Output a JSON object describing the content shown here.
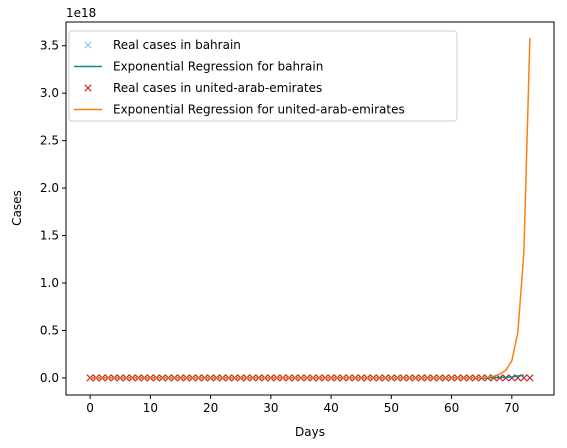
{
  "chart_data": {
    "type": "line",
    "title": "",
    "xlabel": "Days",
    "ylabel": "Cases",
    "y_scale_label": "1e18",
    "xlim": [
      -4,
      77
    ],
    "ylim": [
      -0.18,
      3.75
    ],
    "x_ticks": [
      0,
      10,
      20,
      30,
      40,
      50,
      60,
      70
    ],
    "x_tick_labels": [
      "0",
      "10",
      "20",
      "30",
      "40",
      "50",
      "60",
      "70"
    ],
    "y_ticks": [
      0.0,
      0.5,
      1.0,
      1.5,
      2.0,
      2.5,
      3.0,
      3.5
    ],
    "y_tick_labels": [
      "0.0",
      "0.5",
      "1.0",
      "1.5",
      "2.0",
      "2.5",
      "3.0",
      "3.5"
    ],
    "grid": false,
    "legend_position": "top-left",
    "series": [
      {
        "name": "Real cases in bahrain",
        "kind": "marker",
        "marker": "x",
        "color": "#87ceeb",
        "x_start": 0,
        "x_end": 73,
        "value": 0
      },
      {
        "name": "Exponential Regression for bahrain",
        "kind": "line",
        "color": "#008b8b",
        "x": [
          0,
          66,
          68,
          70,
          71,
          72
        ],
        "y": [
          0,
          0.0,
          0.005,
          0.01,
          0.02,
          0.03
        ]
      },
      {
        "name": "Real cases in united-arab-emirates",
        "kind": "marker",
        "marker": "x",
        "color": "#d62728",
        "x_start": 0,
        "x_end": 73,
        "value": 0
      },
      {
        "name": "Exponential Regression for united-arab-emirates",
        "kind": "line",
        "color": "#ff7f0e",
        "x": [
          0,
          60,
          64,
          66,
          67,
          68,
          69,
          70,
          71,
          72,
          73
        ],
        "y": [
          0,
          0.0,
          0.002,
          0.008,
          0.018,
          0.04,
          0.08,
          0.18,
          0.48,
          1.32,
          3.58
        ]
      }
    ]
  }
}
